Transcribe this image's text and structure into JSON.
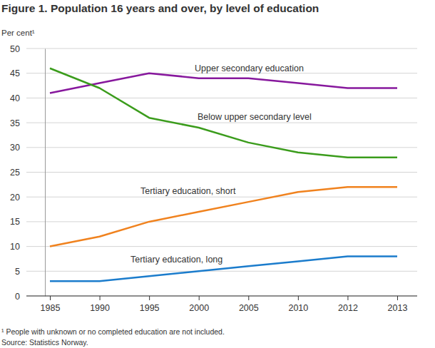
{
  "chart_data": {
    "type": "line",
    "title": "Figure 1. Population 16 years and over, by level of education",
    "y_label": "Per cent¹",
    "footnote": "¹ People with unknown or no completed education are not included.",
    "source": "Source: Statistics Norway.",
    "categories": [
      "1985",
      "1990",
      "1995",
      "2000",
      "2005",
      "2010",
      "2012",
      "2013"
    ],
    "series": [
      {
        "name": "Upper secondary education",
        "color": "#87189d",
        "values": [
          41,
          43,
          45,
          44,
          44,
          43,
          42,
          42
        ]
      },
      {
        "name": "Below upper secondary level",
        "color": "#3b9c1c",
        "values": [
          46,
          42,
          36,
          34,
          31,
          29,
          28,
          28
        ]
      },
      {
        "name": "Tertiary education, short",
        "color": "#f0821e",
        "values": [
          10,
          12,
          15,
          17,
          19,
          21,
          22,
          22
        ]
      },
      {
        "name": "Tertiary education, long",
        "color": "#1b7ccc",
        "values": [
          3,
          3,
          4,
          5,
          6,
          7,
          8,
          8
        ]
      }
    ],
    "ylim": [
      0,
      50
    ],
    "yticks": [
      0,
      5,
      10,
      15,
      20,
      25,
      30,
      35,
      40,
      45,
      50
    ],
    "grid": true
  }
}
